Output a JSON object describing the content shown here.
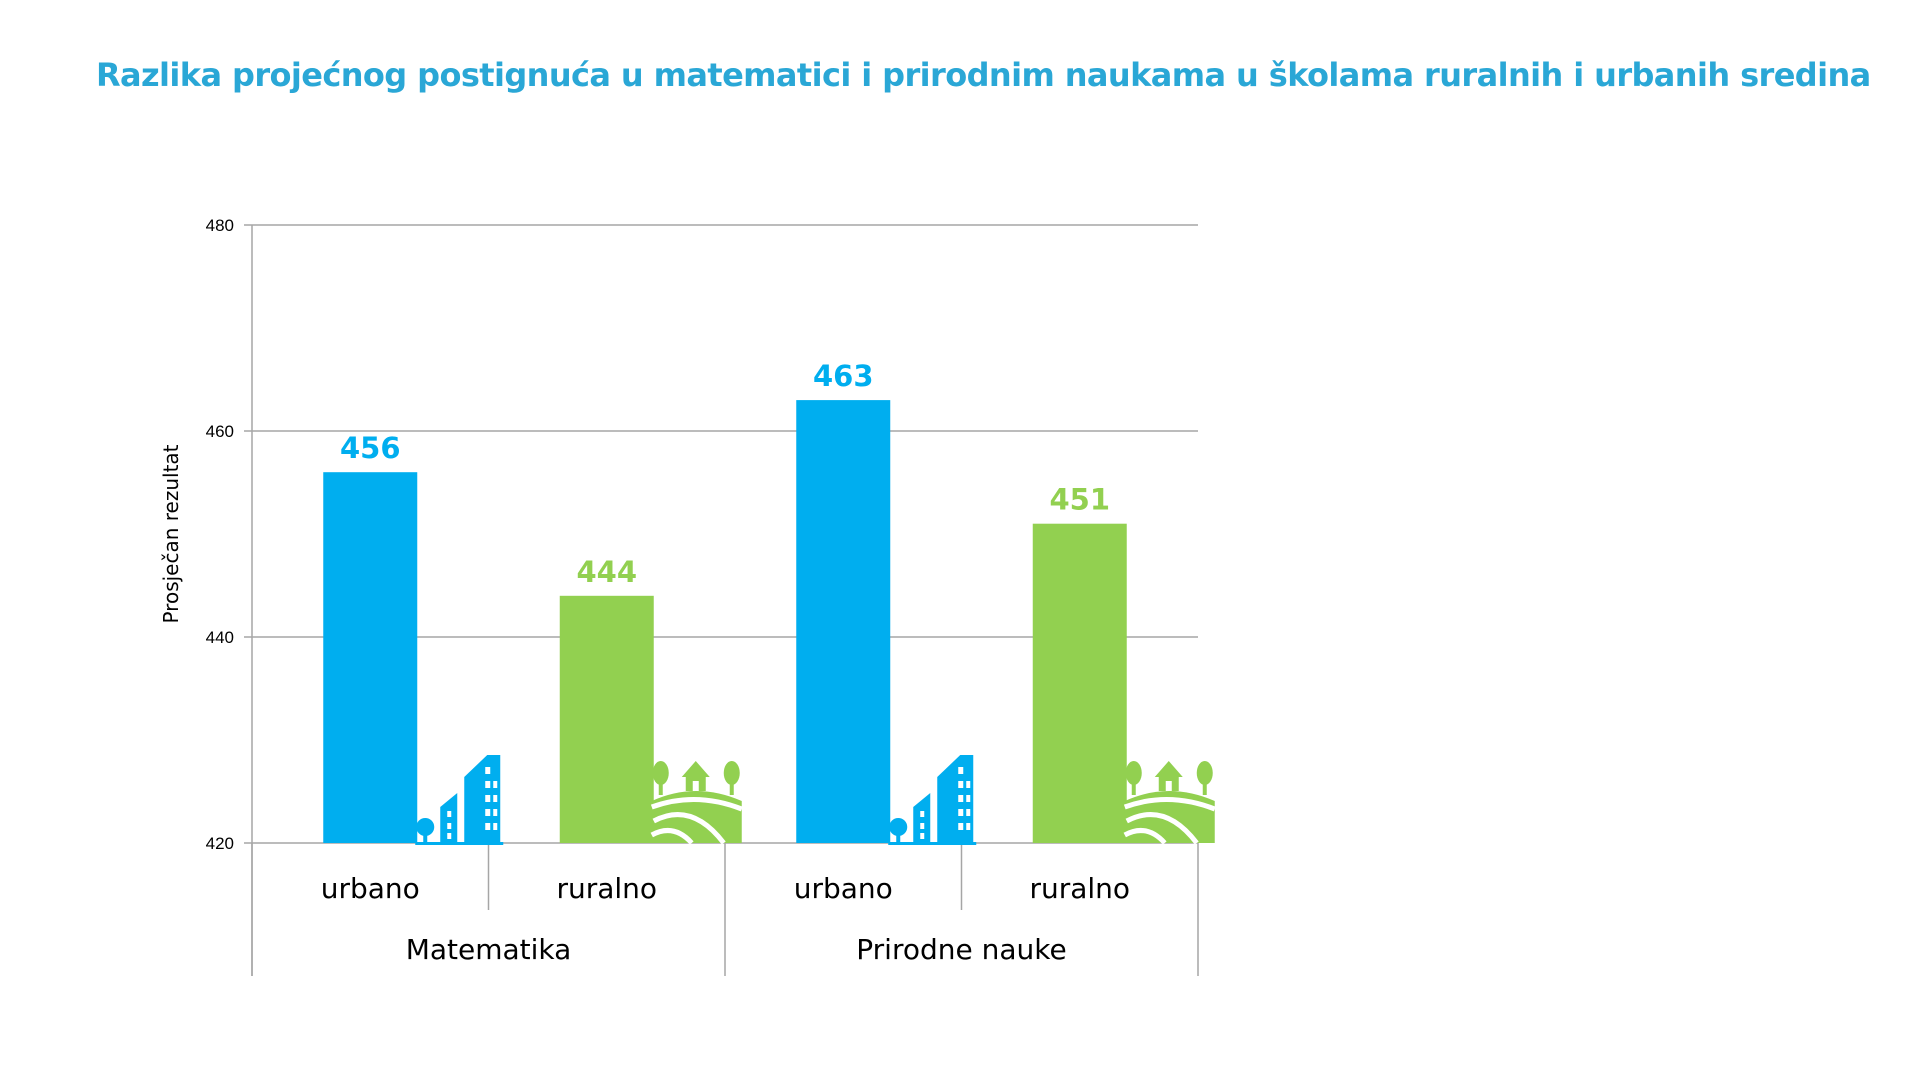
{
  "title": "Razlika projećnog postignuća u matematici i prirodnim naukama u školama ruralnih i urbanih sredina",
  "colors": {
    "title": "#2aa7d6",
    "urbano": "#00aeef",
    "ruralno": "#92d050",
    "grid": "#a6a6a6",
    "text": "#000000"
  },
  "chart_data": {
    "type": "bar",
    "title": "Razlika projećnog postignuća u matematici i prirodnim naukama u školama ruralnih i urbanih sredina",
    "ylabel": "Prosječan rezultat",
    "xlabel": "",
    "ylim": [
      420,
      480
    ],
    "yticks": [
      420,
      440,
      460,
      480
    ],
    "grid": true,
    "groups": [
      {
        "label": "Matematika",
        "bars": [
          {
            "category": "urbano",
            "value": 456,
            "type": "urbano",
            "icon": "city-buildings-icon"
          },
          {
            "category": "ruralno",
            "value": 444,
            "type": "ruralno",
            "icon": "countryside-house-icon"
          }
        ]
      },
      {
        "label": "Prirodne nauke",
        "bars": [
          {
            "category": "urbano",
            "value": 463,
            "type": "urbano",
            "icon": "city-buildings-icon"
          },
          {
            "category": "ruralno",
            "value": 451,
            "type": "ruralno",
            "icon": "countryside-house-icon"
          }
        ]
      }
    ]
  }
}
